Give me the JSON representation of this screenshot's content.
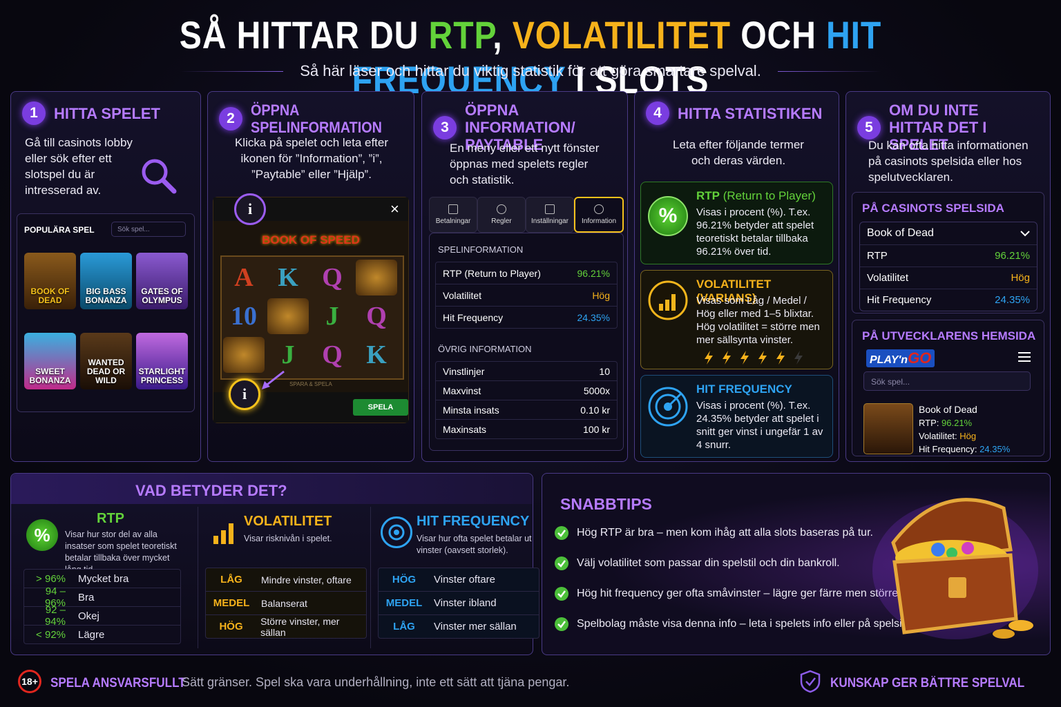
{
  "header": {
    "title_parts": [
      "SÅ HITTAR DU ",
      "RTP",
      ", ",
      "VOLATILITET",
      " OCH ",
      "HIT FREQUENCY",
      " I SLOTS"
    ],
    "subtitle": "Så här läser och hittar du viktig statistik för att göra smartare spelval."
  },
  "steps": [
    {
      "number": "1",
      "title": "HITTA SPELET",
      "text": "Gå till casinots lobby eller sök efter ett slotspel du är intresserad av.",
      "lobby": {
        "label": "POPULÄRA SPEL",
        "search": "Sök spel...",
        "games": [
          "BOOK OF DEAD",
          "BIG BASS BONANZA",
          "GATES OF OLYMPUS",
          "SWEET BONANZA",
          "WANTED DEAD OR WILD",
          "STARLIGHT PRINCESS"
        ]
      }
    },
    {
      "number": "2",
      "title": "ÖPPNA SPELINFORMATION",
      "text": "Klicka på spelet och leta efter ikonen för ”Information”, ”i”, ”Paytable” eller ”Hjälp”.",
      "game": {
        "info_icon": "i",
        "close": "×",
        "title": "BOOK OF SPEED",
        "reels": [
          "A",
          "K",
          "Q",
          "10",
          "J",
          "Q",
          "J",
          "Q",
          "K"
        ],
        "footer_text": "SPARA & SPELA",
        "button": "SPELA"
      }
    },
    {
      "number": "3",
      "title": "ÖPPNA INFORMATION/ PAYTABLE",
      "text": "En meny eller ett nytt fönster öppnas med spelets regler och statistik.",
      "tabs": [
        "Betalningar",
        "Regler",
        "Inställningar",
        "Information"
      ],
      "sections": [
        {
          "heading": "SPELINFORMATION",
          "rows": [
            [
              "RTP (Return to Player)",
              "96.21%"
            ],
            [
              "Volatilitet",
              "Hög"
            ],
            [
              "Hit Frequency",
              "24.35%"
            ]
          ]
        },
        {
          "heading": "ÖVRIG INFORMATION",
          "rows": [
            [
              "Vinstlinjer",
              "10"
            ],
            [
              "Maxvinst",
              "5000x"
            ],
            [
              "Minsta insats",
              "0.10 kr"
            ],
            [
              "Maxinsats",
              "100 kr"
            ]
          ]
        }
      ]
    },
    {
      "number": "4",
      "title": "HITTA STATISTIKEN",
      "text": "Leta efter följande termer och deras värden.",
      "cards": [
        {
          "icon": "%",
          "title": "RTP",
          "title_suffix": " (Return to Player)",
          "text": "Visas i procent (%). T.ex. 96.21% betyder att spelet teoretiskt betalar tillbaka 96.21% över tid."
        },
        {
          "title": "VOLATILITET (VARIANS)",
          "text": "Visas som Låg / Medel / Hög eller med 1–5 blixtar. Hög volatilitet = större men mer sällsynta vinster."
        },
        {
          "title": "HIT FREQUENCY",
          "text": "Visas i procent (%). T.ex. 24.35% betyder att spelet i snitt ger vinst i ungefär 1 av 4 snurr."
        }
      ]
    },
    {
      "number": "5",
      "title": "OM DU INTE HITTAR DET I SPELET",
      "text": "Du kan ofta hitta informationen på casinots spelsida eller hos spelutvecklaren.",
      "casino": {
        "heading": "PÅ CASINOTS SPELSIDA",
        "game": "Book of Dead",
        "rows": [
          [
            "RTP",
            "96.21%"
          ],
          [
            "Volatilitet",
            "Hög"
          ],
          [
            "Hit Frequency",
            "24.35%"
          ]
        ]
      },
      "developer": {
        "heading": "PÅ UTVECKLARENS HEMSIDA",
        "logo_parts": [
          "PLAY'n",
          "GO"
        ],
        "search": "Sök spel...",
        "game": "Book of Dead",
        "rows": [
          [
            "RTP:",
            "96.21%"
          ],
          [
            "Volatilitet:",
            "Hög"
          ],
          [
            "Hit Frequency:",
            "24.35%"
          ]
        ]
      }
    }
  ],
  "meaning": {
    "title": "VAD BETYDER DET?",
    "columns": [
      {
        "icon": "%",
        "title": "RTP",
        "text": "Visar hur stor del av alla insatser som spelet teoretiskt betalar tillbaka över mycket lång tid.",
        "rows": [
          [
            "> 96%",
            "Mycket bra"
          ],
          [
            "94 – 96%",
            "Bra"
          ],
          [
            "92 – 94%",
            "Okej"
          ],
          [
            "< 92%",
            "Lägre"
          ]
        ]
      },
      {
        "title": "VOLATILITET",
        "text": "Visar risknivån i spelet.",
        "rows": [
          [
            "LÅG",
            "Mindre vinster, oftare"
          ],
          [
            "MEDEL",
            "Balanserat"
          ],
          [
            "HÖG",
            "Större vinster, mer sällan"
          ]
        ]
      },
      {
        "title": "HIT FREQUENCY",
        "text": "Visar hur ofta spelet betalar ut vinster (oavsett storlek).",
        "rows": [
          [
            "HÖG",
            "Vinster oftare"
          ],
          [
            "MEDEL",
            "Vinster ibland"
          ],
          [
            "LÅG",
            "Vinster mer sällan"
          ]
        ]
      }
    ]
  },
  "tips": {
    "title": "SNABBTIPS",
    "items": [
      "Hög RTP är bra – men kom ihåg att alla slots baseras på tur.",
      "Välj volatilitet som passar din spelstil och din bankroll.",
      "Hög hit frequency ger ofta småvinster – lägre ger färre men större.",
      "Spelbolag måste visa denna info – leta i spelets info eller på spelsidan."
    ]
  },
  "footer": {
    "badge": "18+",
    "label": "SPELA ANSVARSFULLT",
    "text": "Sätt gränser. Spel ska vara underhållning, inte ett sätt att tjäna pengar.",
    "motto": "KUNSKAP GER BÄTTRE SPELVAL"
  }
}
